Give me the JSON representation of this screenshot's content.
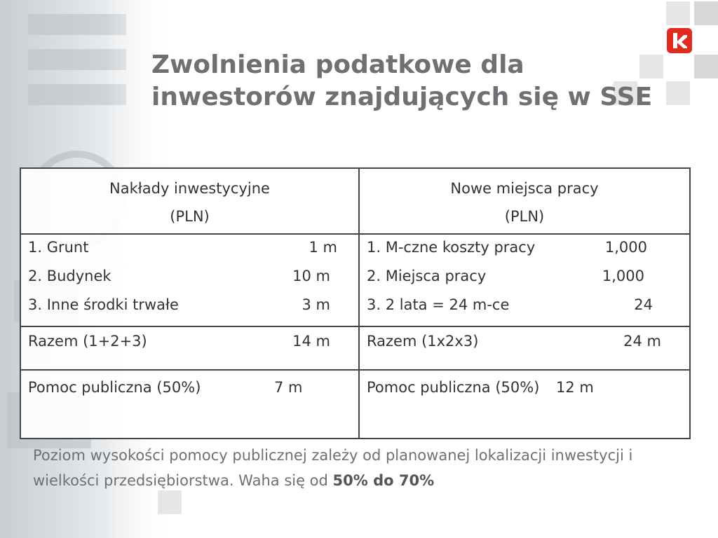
{
  "title": {
    "line1": "Zwolnienia podatkowe dla",
    "line2": "inwestorów znajdujących się w SSE"
  },
  "table": {
    "headers": [
      {
        "line1": "Nakłady inwestycyjne",
        "line2": "(PLN)"
      },
      {
        "line1": "Nowe miejsca pracy",
        "line2": "(PLN)"
      }
    ],
    "left_items": [
      {
        "label": "1. Grunt",
        "value": "1 m"
      },
      {
        "label": "2. Budynek",
        "value": "10 m"
      },
      {
        "label": "3. Inne środki trwałe",
        "value": "3 m"
      }
    ],
    "right_items": [
      {
        "label": "1. M-czne koszty pracy",
        "value": "1,000"
      },
      {
        "label": "2. Miejsca pracy",
        "value": "1,000"
      },
      {
        "label": "3. 2 lata = 24 m-ce",
        "value": "24"
      }
    ],
    "left_total": {
      "label": "Razem (1+2+3)",
      "value": "14 m"
    },
    "right_total": {
      "label": "Razem (1x2x3)",
      "value": "24 m"
    },
    "left_aid": {
      "label": "Pomoc publiczna (50%)",
      "value": "7 m"
    },
    "right_aid": {
      "label": "Pomoc publiczna (50%)",
      "value": "12 m"
    }
  },
  "footer": {
    "text": "Poziom wysokości pomocy publicznej zależy od planowanej lokalizacji inwestycji i wielkości przedsiębiorstwa. Waha się od ",
    "emphasis": "50% do 70%"
  },
  "logo": {
    "icon": "k-logo-icon",
    "color": "#e02b20"
  }
}
